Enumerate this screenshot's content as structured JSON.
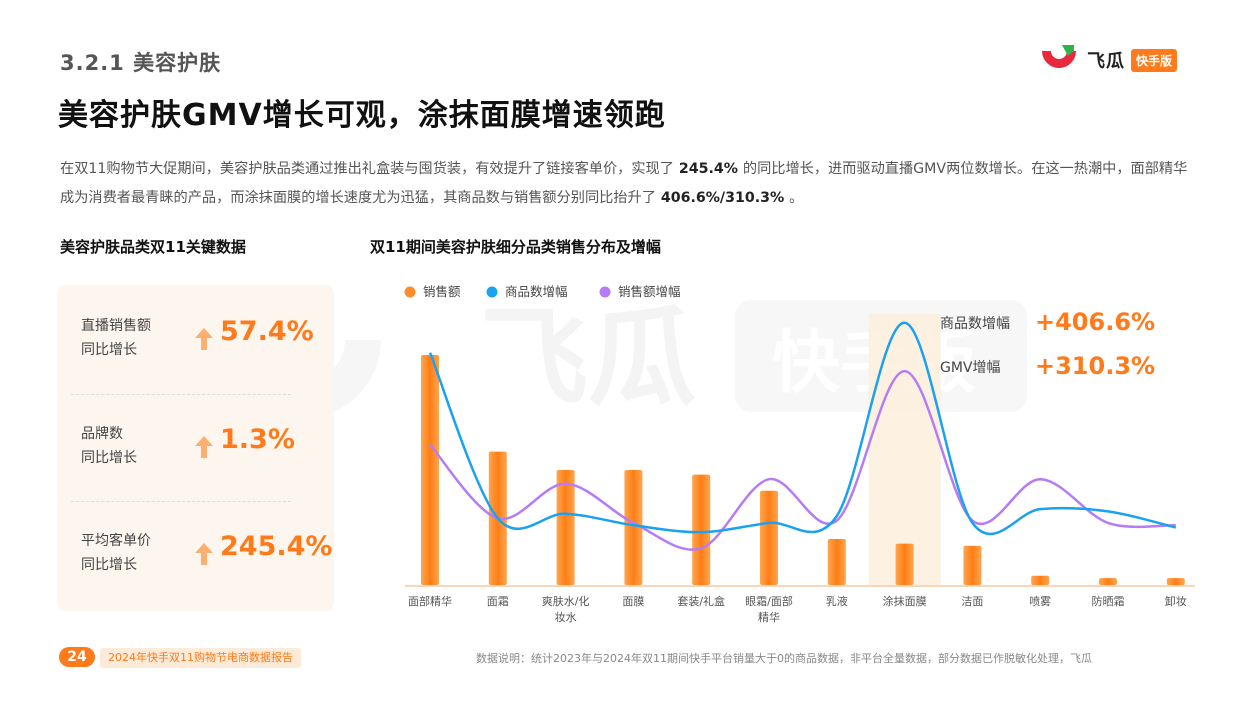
{
  "header": {
    "section": "3.2.1 美容护肤",
    "headline": "美容护肤GMV增长可观，涂抹面膜增速领跑"
  },
  "logo": {
    "brand": "飞瓜",
    "badge": "快手版",
    "watermark_brand": "飞瓜",
    "watermark_badge": "快手版"
  },
  "description": {
    "p1": "在双11购物节大促期间，美容护肤品类通过推出礼盒装与囤货装，有效提升了链接客单价，实现了",
    "v1": " 245.4% ",
    "p2": "的同比增长，进而驱动直播GMV两位数增长。在这一热潮中，面部精华成为消费者最青睐的产品，而涂抹面膜的增长速度尤为迅猛，其商品数与销售额分别同比抬升了",
    "v2": " 406.6%/310.3% ",
    "p3": "。"
  },
  "kpi": {
    "title": "美容护肤品类双11关键数据",
    "items": [
      {
        "label_line1": "直播销售额",
        "label_line2": "同比增长",
        "value": "57.4%"
      },
      {
        "label_line1": "品牌数",
        "label_line2": "同比增长",
        "value": "1.3%"
      },
      {
        "label_line1": "平均客单价",
        "label_line2": "同比增长",
        "value": "245.4%"
      }
    ]
  },
  "colors": {
    "accent": "#ff7a1a",
    "bar": "#ff8c28",
    "line_blue": "#1aa1f0",
    "line_purple": "#b57cf5",
    "highlight_band": "#fdeedd"
  },
  "chart_data": {
    "type": "bar",
    "title": "双11期间美容护肤细分品类销售分布及增幅",
    "categories": [
      "面部精华",
      "面霜",
      "爽肤水/化妆水",
      "面膜",
      "套装/礼盒",
      "眼霜/面部精华",
      "乳液",
      "涂抹面膜",
      "洁面",
      "喷雾",
      "防晒霜",
      "卸妆"
    ],
    "category_lines": [
      [
        "面部精华"
      ],
      [
        "面霜"
      ],
      [
        "爽肤水/化",
        "妆水"
      ],
      [
        "面膜"
      ],
      [
        "套装/礼盒"
      ],
      [
        "眼霜/面部",
        "精华"
      ],
      [
        "乳液"
      ],
      [
        "涂抹面膜"
      ],
      [
        "洁面"
      ],
      [
        "喷雾"
      ],
      [
        "防晒霜"
      ],
      [
        "卸妆"
      ]
    ],
    "series": [
      {
        "name": "销售额",
        "kind": "bar",
        "values": [
          100,
          58,
          50,
          50,
          48,
          41,
          20,
          18,
          17,
          4,
          3,
          3
        ]
      },
      {
        "name": "商品数增幅",
        "kind": "line",
        "values": [
          101,
          29,
          31,
          26,
          23,
          27,
          30,
          114,
          27,
          33,
          32,
          25
        ]
      },
      {
        "name": "销售额增幅",
        "kind": "line",
        "values": [
          61,
          29,
          44,
          27,
          16,
          46,
          28,
          93,
          28,
          46,
          27,
          26
        ]
      }
    ],
    "highlight_category": "涂抹面膜",
    "annotations": [
      {
        "label": "商品数增幅",
        "value": "+406.6%"
      },
      {
        "label": "GMV增幅",
        "value": "+310.3%"
      }
    ],
    "legend_position": "top-left",
    "grid": false,
    "xlabel": "",
    "ylabel": ""
  },
  "footer": {
    "page": "24",
    "report": "2024年快手双11购物节电商数据报告",
    "note": "数据说明：统计2023年与2024年双11期间快手平台销量大于0的商品数据，非平台全量数据，部分数据已作脱敏化处理，飞瓜"
  }
}
